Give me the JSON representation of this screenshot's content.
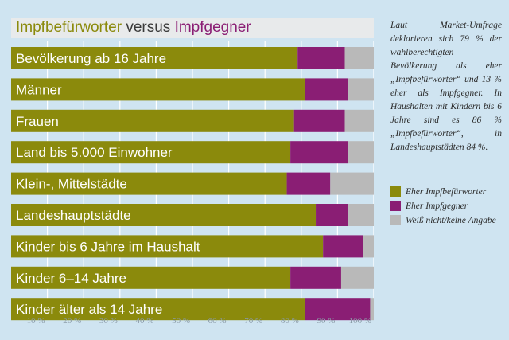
{
  "chart_data": {
    "type": "bar",
    "stacked": true,
    "orientation": "horizontal",
    "title_parts": [
      "Impfbefürworter",
      " versus ",
      "Impfgegner"
    ],
    "categories": [
      "Bevölkerung ab 16 Jahre",
      "Männer",
      "Frauen",
      "Land bis 5.000 Einwohner",
      "Klein-, Mittelstädte",
      "Landeshauptstädte",
      "Kinder bis 6 Jahre im Haushalt",
      "Kinder 6–14 Jahre",
      "Kinder älter als 14 Jahre"
    ],
    "series": [
      {
        "name": "Eher Impfbefürworter",
        "color": "#8b8a0c",
        "values": [
          79,
          81,
          78,
          77,
          76,
          84,
          86,
          77,
          81
        ]
      },
      {
        "name": "Eher Impfgegner",
        "color": "#8a1e74",
        "values": [
          13,
          12,
          14,
          16,
          12,
          9,
          11,
          14,
          18
        ]
      },
      {
        "name": "Weiß nicht/keine Angabe",
        "color": "#b9b9b9",
        "values": [
          8,
          7,
          8,
          7,
          12,
          7,
          3,
          9,
          1
        ]
      }
    ],
    "x_ticks": [
      "10 %",
      "20 %",
      "30 %",
      "40 %",
      "50 %",
      "60 %",
      "70 %",
      "80 %",
      "90 %",
      "100 %"
    ],
    "xlim": [
      0,
      100
    ],
    "grid": true
  },
  "side_text": "Laut Market-Umfrage deklarieren sich 79 % der wahlberechtigten Bevölkerung als eher „Impfbefürworter“ und 13 % eher als Impfgegner. In Haushalten mit Kindern bis 6 Jahre sind es 86 % „Impfbefürworter“, in Landeshauptstädten 84 %."
}
